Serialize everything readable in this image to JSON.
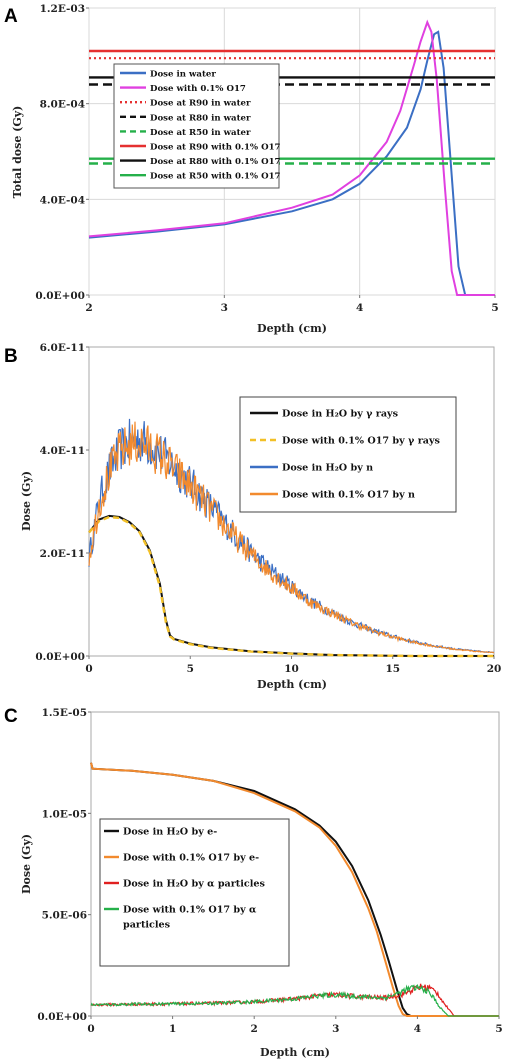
{
  "chart_data": [
    {
      "panel": "A",
      "type": "line",
      "xlabel": "Depth (cm)",
      "ylabel": "Total dose (Gy)",
      "xlim": [
        2,
        5
      ],
      "ylim": [
        0,
        0.0012
      ],
      "xticks": [
        "2",
        "3",
        "4",
        "5"
      ],
      "yticks": [
        "0.0E+00",
        "4.0E-04",
        "8.0E-04",
        "1.2E-03"
      ],
      "grid": true,
      "legend_position": "top-left",
      "series": [
        {
          "name": "Dose in water",
          "color": "#3b6fc4",
          "style": "solid",
          "x": [
            2.0,
            2.5,
            3.0,
            3.5,
            3.8,
            4.0,
            4.2,
            4.35,
            4.45,
            4.5,
            4.55,
            4.58,
            4.62,
            4.68,
            4.73,
            4.78,
            5.0
          ],
          "y": [
            0.00024,
            0.000265,
            0.000295,
            0.00035,
            0.0004,
            0.000465,
            0.00058,
            0.0007,
            0.00086,
            0.00098,
            0.00109,
            0.0011,
            0.00095,
            0.0005,
            0.00012,
            0.0,
            0.0
          ]
        },
        {
          "name": "Dose with 0.1% O17",
          "color": "#e040e0",
          "style": "solid",
          "x": [
            2.0,
            2.5,
            3.0,
            3.5,
            3.8,
            4.0,
            4.2,
            4.3,
            4.4,
            4.45,
            4.5,
            4.53,
            4.57,
            4.63,
            4.68,
            4.72,
            5.0
          ],
          "y": [
            0.000245,
            0.00027,
            0.0003,
            0.000365,
            0.00042,
            0.0005,
            0.00064,
            0.00077,
            0.00096,
            0.00106,
            0.00114,
            0.0011,
            0.0009,
            0.00045,
            0.0001,
            0.0,
            0.0
          ]
        },
        {
          "name": "Dose at R90 in water",
          "color": "#e53030",
          "style": "dotted",
          "x": [
            2,
            5
          ],
          "y": [
            0.00099,
            0.00099
          ]
        },
        {
          "name": "Dose at R80 in water",
          "color": "#111111",
          "style": "dashed",
          "x": [
            2,
            5
          ],
          "y": [
            0.00088,
            0.00088
          ]
        },
        {
          "name": "Dose at R50 in water",
          "color": "#25b04a",
          "style": "dashed",
          "x": [
            2,
            5
          ],
          "y": [
            0.00055,
            0.00055
          ]
        },
        {
          "name": "Dose at R90 with 0.1% O17",
          "color": "#e53030",
          "style": "solid",
          "x": [
            2,
            5
          ],
          "y": [
            0.00102,
            0.00102
          ]
        },
        {
          "name": "Dose at R80 with 0.1% O17",
          "color": "#111111",
          "style": "solid",
          "x": [
            2,
            5
          ],
          "y": [
            0.00091,
            0.00091
          ]
        },
        {
          "name": "Dose at R50 with 0.1% O17",
          "color": "#25b04a",
          "style": "solid",
          "x": [
            2,
            5
          ],
          "y": [
            0.00057,
            0.00057
          ]
        }
      ]
    },
    {
      "panel": "B",
      "type": "line",
      "xlabel": "Depth (cm)",
      "ylabel": "Dose (Gy)",
      "xlim": [
        0,
        20
      ],
      "ylim": [
        0,
        6e-11
      ],
      "xticks": [
        "0",
        "5",
        "10",
        "15",
        "20"
      ],
      "yticks": [
        "0.0E+00",
        "2.0E-11",
        "4.0E-11",
        "6.0E-11"
      ],
      "grid": false,
      "legend_position": "top-right",
      "series": [
        {
          "name": "Dose in H₂O by γ rays",
          "color": "#111111",
          "style": "solid",
          "x": [
            0,
            0.5,
            1,
            1.5,
            2,
            2.5,
            3,
            3.5,
            3.8,
            4,
            4.2,
            5,
            6,
            8,
            10,
            12,
            14,
            16,
            20
          ],
          "y": [
            2.4e-11,
            2.65e-11,
            2.72e-11,
            2.7e-11,
            2.6e-11,
            2.42e-11,
            2.05e-11,
            1.4e-11,
            7e-12,
            4e-12,
            3.3e-12,
            2.4e-12,
            1.7e-12,
            9e-13,
            5e-13,
            2e-13,
            1e-13,
            0,
            0
          ]
        },
        {
          "name": "Dose with 0.1% O17 by γ rays",
          "color": "#f2c027",
          "style": "dashed",
          "x": [
            0,
            0.5,
            1,
            1.5,
            2,
            2.5,
            3,
            3.5,
            3.8,
            4,
            4.2,
            5,
            6,
            8,
            10,
            12,
            14,
            16,
            20
          ],
          "y": [
            2.4e-11,
            2.62e-11,
            2.7e-11,
            2.68e-11,
            2.58e-11,
            2.4e-11,
            2.02e-11,
            1.35e-11,
            6.5e-12,
            3.8e-12,
            3.2e-12,
            2.3e-12,
            1.6e-12,
            8.5e-13,
            4.5e-13,
            2e-13,
            1e-13,
            0,
            0
          ]
        },
        {
          "name": "Dose in H₂O by n",
          "color": "#3b6fc4",
          "style": "noisy",
          "x": [
            0,
            0.5,
            1,
            1.5,
            2,
            2.5,
            3,
            3.5,
            4,
            5,
            6,
            7,
            8,
            9,
            10,
            11,
            12,
            13,
            14,
            15,
            16,
            17,
            18,
            19,
            20
          ],
          "y": [
            1.9e-11,
            3e-11,
            3.6e-11,
            4e-11,
            4.15e-11,
            4.2e-11,
            4.1e-11,
            3.95e-11,
            3.75e-11,
            3.35e-11,
            2.9e-11,
            2.45e-11,
            2e-11,
            1.65e-11,
            1.35e-11,
            1.05e-11,
            8.5e-12,
            6.5e-12,
            5e-12,
            3.8e-12,
            2.8e-12,
            2e-12,
            1.4e-12,
            1e-12,
            7e-13
          ]
        },
        {
          "name": "Dose with 0.1% O17 by n",
          "color": "#f28a2e",
          "style": "noisy",
          "x": [
            0,
            0.5,
            1,
            1.5,
            2,
            2.5,
            3,
            3.5,
            4,
            5,
            6,
            7,
            8,
            9,
            10,
            11,
            12,
            13,
            14,
            15,
            16,
            17,
            18,
            19,
            20
          ],
          "y": [
            1.9e-11,
            2.95e-11,
            3.55e-11,
            3.95e-11,
            4.1e-11,
            4.15e-11,
            4.05e-11,
            3.9e-11,
            3.7e-11,
            3.3e-11,
            2.85e-11,
            2.4e-11,
            1.97e-11,
            1.62e-11,
            1.32e-11,
            1.03e-11,
            8.3e-12,
            6.4e-12,
            4.9e-12,
            3.7e-12,
            2.7e-12,
            1.95e-12,
            1.35e-12,
            9.5e-13,
            6.5e-13
          ]
        }
      ]
    },
    {
      "panel": "C",
      "type": "line",
      "xlabel": "Depth (cm)",
      "ylabel": "Dose (Gy)",
      "xlim": [
        0,
        5
      ],
      "ylim": [
        0,
        1.5e-05
      ],
      "xticks": [
        "0",
        "1",
        "2",
        "3",
        "4",
        "5"
      ],
      "yticks": [
        "0.0E+00",
        "5.0E-06",
        "1.0E-05",
        "1.5E-05"
      ],
      "grid": false,
      "legend_position": "center-left",
      "series": [
        {
          "name": "Dose in H₂O by e-",
          "color": "#111111",
          "style": "solid",
          "x": [
            0,
            0.02,
            0.5,
            1,
            1.5,
            2,
            2.5,
            2.8,
            3.0,
            3.2,
            3.4,
            3.55,
            3.65,
            3.75,
            3.82,
            3.87,
            3.92,
            5
          ],
          "y": [
            1.25e-05,
            1.22e-05,
            1.21e-05,
            1.19e-05,
            1.16e-05,
            1.11e-05,
            1.02e-05,
            9.4e-06,
            8.6e-06,
            7.4e-06,
            5.7e-06,
            4e-06,
            2.7e-06,
            1.3e-06,
            4e-07,
            1e-07,
            0,
            0
          ]
        },
        {
          "name": "Dose with 0.1% O17 by e-",
          "color": "#f28a2e",
          "style": "solid",
          "x": [
            0,
            0.02,
            0.5,
            1,
            1.5,
            2,
            2.5,
            2.8,
            3.0,
            3.2,
            3.4,
            3.5,
            3.6,
            3.7,
            3.77,
            3.82,
            3.87,
            5
          ],
          "y": [
            1.25e-05,
            1.22e-05,
            1.21e-05,
            1.19e-05,
            1.16e-05,
            1.1e-05,
            1.01e-05,
            9.3e-06,
            8.4e-06,
            7.1e-06,
            5.3e-06,
            4.2e-06,
            2.8e-06,
            1.4e-06,
            5e-07,
            1e-07,
            0,
            0
          ]
        },
        {
          "name": "Dose in H₂O by α particles",
          "color": "#e02020",
          "style": "noisy",
          "x": [
            0,
            0.5,
            1,
            1.5,
            2,
            2.5,
            2.8,
            3.0,
            3.3,
            3.6,
            3.8,
            3.95,
            4.05,
            4.15,
            4.25,
            4.35,
            4.45,
            5
          ],
          "y": [
            5.5e-07,
            5.8e-07,
            6e-07,
            6.3e-07,
            7e-07,
            8.5e-07,
            1e-06,
            1.05e-06,
            9.5e-07,
            9e-07,
            1.05e-06,
            1.3e-06,
            1.45e-06,
            1.4e-06,
            1.1e-06,
            5e-07,
            0,
            0
          ]
        },
        {
          "name": "Dose with 0.1% O17 by α particles",
          "color": "#25b04a",
          "style": "noisy",
          "x": [
            0,
            0.5,
            1,
            1.5,
            2,
            2.5,
            2.8,
            3.0,
            3.3,
            3.6,
            3.75,
            3.9,
            4.0,
            4.1,
            4.2,
            4.28,
            4.38,
            5
          ],
          "y": [
            5.5e-07,
            5.8e-07,
            6e-07,
            6.3e-07,
            7e-07,
            8.5e-07,
            1e-06,
            1.05e-06,
            9.5e-07,
            9e-07,
            1.1e-06,
            1.35e-06,
            1.4e-06,
            1.3e-06,
            9e-07,
            4e-07,
            0,
            0
          ]
        }
      ]
    }
  ],
  "panels": {
    "A": {
      "letter": "A",
      "legend": [
        "Dose in water",
        "Dose with 0.1% O17",
        "Dose at R90 in water",
        "Dose at R80 in water",
        "Dose at R50 in water",
        "Dose at R90 with 0.1% O17",
        "Dose at R80 with 0.1% O17",
        "Dose at R50 with 0.1% O17"
      ]
    },
    "B": {
      "letter": "B",
      "legend": [
        "Dose in H₂O by γ rays",
        "Dose with 0.1% O17 by γ rays",
        "Dose in H₂O by n",
        "Dose with 0.1% O17 by n"
      ]
    },
    "C": {
      "letter": "C",
      "legend": [
        "Dose in  H₂O  by e-",
        "Dose with 0.1% O17 by e-",
        "Dose in  H₂O  by α particles",
        "Dose with 0.1% O17 by α",
        "particles"
      ]
    }
  }
}
